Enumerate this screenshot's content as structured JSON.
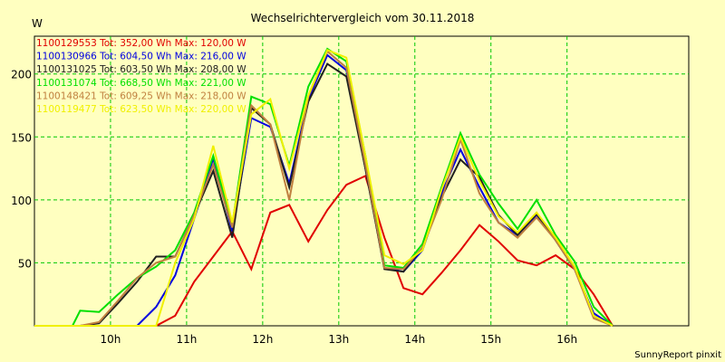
{
  "chart_data": {
    "type": "line",
    "title": "Wechselrichtervergleich vom 30.11.2018",
    "ylabel": "W",
    "xlabel": "",
    "ylim": [
      0,
      230
    ],
    "xlim": [
      9.0,
      17.6
    ],
    "yticks": [
      50,
      100,
      150,
      200
    ],
    "xticks": [
      {
        "value": 10,
        "label": "10h"
      },
      {
        "value": 11,
        "label": "11h"
      },
      {
        "value": 12,
        "label": "12h"
      },
      {
        "value": 13,
        "label": "13h"
      },
      {
        "value": 14,
        "label": "14h"
      },
      {
        "value": 15,
        "label": "15h"
      },
      {
        "value": 16,
        "label": "16h"
      }
    ],
    "grid": true,
    "legend_position": "top-left",
    "x": [
      9.0,
      9.25,
      9.5,
      9.6,
      9.85,
      10.1,
      10.35,
      10.6,
      10.85,
      11.1,
      11.35,
      11.6,
      11.85,
      12.1,
      12.35,
      12.6,
      12.85,
      13.1,
      13.35,
      13.6,
      13.85,
      14.1,
      14.35,
      14.6,
      14.85,
      15.1,
      15.35,
      15.6,
      15.85,
      16.1,
      16.35,
      16.6
    ],
    "series": [
      {
        "name": "1100129553",
        "legend": "1100129553 Tot: 352,00 Wh Max: 120,00 W",
        "color": "#e00000",
        "values": [
          0,
          0,
          0,
          0,
          0,
          0,
          0,
          0,
          8,
          35,
          55,
          75,
          45,
          90,
          96,
          67,
          92,
          112,
          119,
          70,
          30,
          25,
          42,
          60,
          80,
          67,
          52,
          48,
          56,
          45,
          25,
          0
        ]
      },
      {
        "name": "1100130966",
        "legend": "1100130966 Tot: 604,50 Wh Max: 216,00 W",
        "color": "#0000e0",
        "values": [
          0,
          0,
          0,
          0,
          0,
          0,
          0,
          15,
          40,
          85,
          133,
          75,
          165,
          158,
          113,
          180,
          215,
          203,
          125,
          46,
          43,
          60,
          105,
          140,
          110,
          82,
          72,
          88,
          68,
          45,
          10,
          0
        ]
      },
      {
        "name": "1100131025",
        "legend": "1100131025 Tot: 603,50 Wh Max: 208,00 W",
        "color": "#202020",
        "values": [
          0,
          0,
          0,
          0,
          2,
          18,
          35,
          55,
          55,
          88,
          123,
          70,
          173,
          160,
          110,
          178,
          208,
          198,
          125,
          45,
          43,
          62,
          102,
          132,
          118,
          88,
          72,
          89,
          68,
          45,
          8,
          0
        ]
      },
      {
        "name": "1100131074",
        "legend": "1100131074 Tot: 668,50 Wh Max: 221,00 W",
        "color": "#00e000",
        "values": [
          0,
          0,
          0,
          12,
          11,
          25,
          38,
          47,
          60,
          90,
          135,
          80,
          182,
          176,
          127,
          190,
          220,
          210,
          135,
          48,
          46,
          65,
          110,
          153,
          120,
          97,
          77,
          100,
          72,
          51,
          15,
          0
        ]
      },
      {
        "name": "1100148421",
        "legend": "1100148421 Tot: 609,25 Wh Max: 218,00 W",
        "color": "#c08040",
        "values": [
          0,
          0,
          0,
          0,
          3,
          20,
          38,
          50,
          55,
          88,
          128,
          78,
          175,
          160,
          100,
          182,
          218,
          205,
          128,
          46,
          45,
          62,
          100,
          148,
          105,
          82,
          70,
          86,
          68,
          45,
          6,
          0
        ]
      },
      {
        "name": "1100119477",
        "legend": "1100119477 Tot: 623,50 Wh Max: 220,00 W",
        "color": "#f0f000",
        "values": [
          0,
          0,
          0,
          0,
          0,
          0,
          0,
          0,
          50,
          85,
          143,
          82,
          168,
          180,
          125,
          183,
          219,
          213,
          135,
          56,
          49,
          60,
          108,
          150,
          115,
          87,
          74,
          90,
          70,
          47,
          8,
          0
        ]
      }
    ]
  },
  "footer": {
    "credit": "SunnyReport pinxit"
  }
}
